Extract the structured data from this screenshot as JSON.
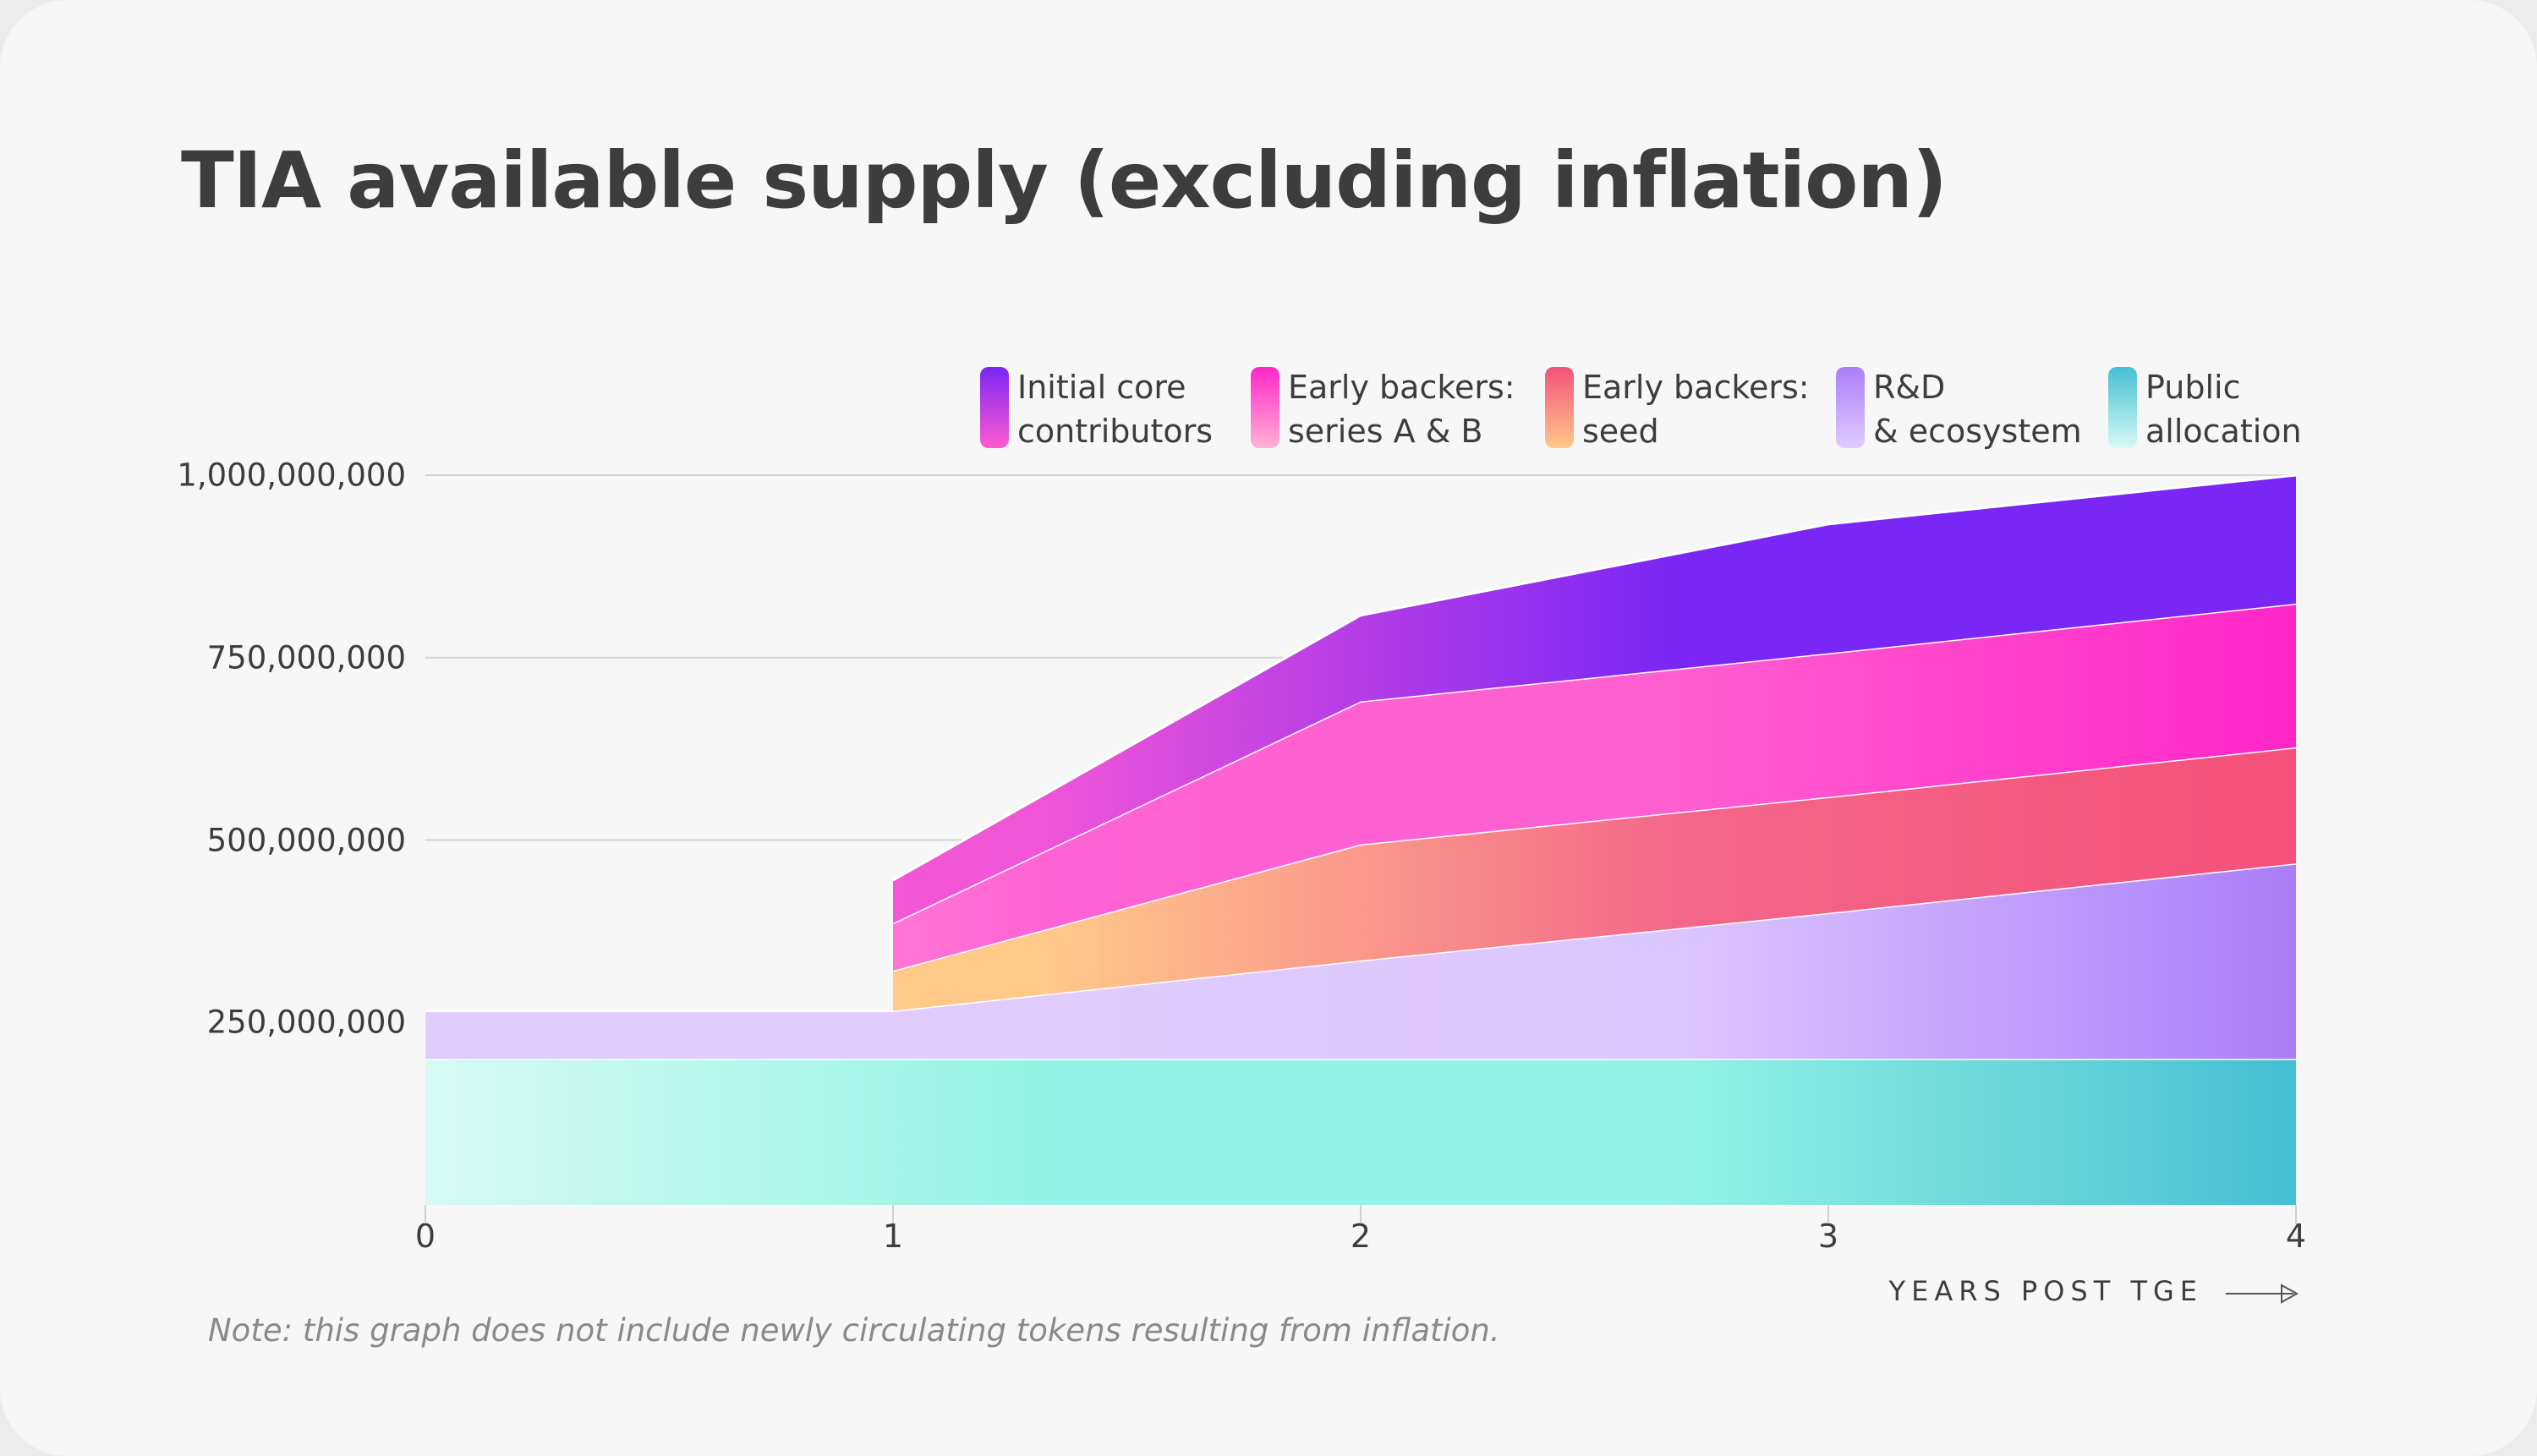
{
  "chart_data": {
    "type": "area",
    "stacked": true,
    "title": "TIA available supply (excluding inflation)",
    "xlabel": "YEARS POST TGE",
    "ylabel": "",
    "x": [
      0,
      1,
      2,
      3,
      4
    ],
    "xlim": [
      0,
      4
    ],
    "ylim": [
      0,
      1000000000
    ],
    "yticks": [
      250000000,
      500000000,
      750000000,
      1000000000
    ],
    "ytick_labels": [
      "250,000,000",
      "500,000,000",
      "750,000,000",
      "1,000,000,000"
    ],
    "xtick_labels": [
      "0",
      "1",
      "2",
      "3",
      "4"
    ],
    "grid": "horizontal",
    "legend_placement": "top-right",
    "series": [
      {
        "name": "Public allocation",
        "legend": [
          "Public",
          "allocation"
        ],
        "values": [
          200000000,
          200000000,
          200000000,
          200000000,
          200000000
        ],
        "colors": [
          "#d6faf4",
          "#94f3e4",
          "#94f3e4",
          "#45bfd3"
        ]
      },
      {
        "name": "R&D & ecosystem",
        "legend": [
          "R&D",
          "& ecosystem"
        ],
        "values": [
          66000000,
          66000000,
          135000000,
          200000000,
          268000000
        ],
        "colors": [
          "#e0ccff",
          "#e0ccff",
          "#dcc6ff",
          "#a97ef8"
        ]
      },
      {
        "name": "Early backers: seed",
        "legend": [
          "Early backers:",
          "seed"
        ],
        "values": [
          null,
          55000000,
          159000000,
          159000000,
          159000000
        ],
        "colors": [
          "#ffc98a",
          "#ffc98a",
          "#f4678a",
          "#f4517a"
        ]
      },
      {
        "name": "Early backers: series A & B",
        "legend": [
          "Early backers:",
          "series A & B"
        ],
        "values": [
          null,
          65000000,
          196000000,
          197000000,
          197000000
        ],
        "colors": [
          "#ffb3d6",
          "#ff62d4",
          "#ff5fd0",
          "#ff26c8"
        ]
      },
      {
        "name": "Initial core contributors",
        "legend": [
          "Initial core",
          "contributors"
        ],
        "values": [
          null,
          59000000,
          118000000,
          177000000,
          176000000
        ],
        "colors": [
          "#ff5ad0",
          "#ef55d8",
          "#7a26f5",
          "#7a26f5"
        ]
      }
    ],
    "annotation": "Note: this graph does not include newly circulating tokens resulting from inflation."
  }
}
